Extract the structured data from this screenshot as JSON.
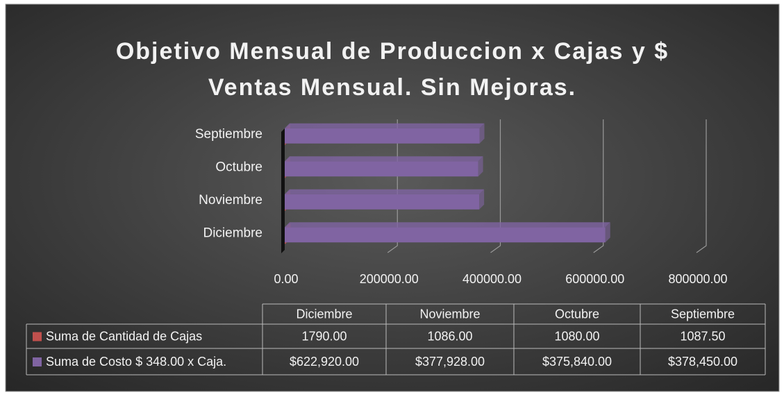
{
  "chart_data": {
    "type": "bar",
    "title": [
      "Objetivo Mensual de Produccion x Cajas y $",
      "Ventas Mensual. Sin Mejoras."
    ],
    "categories": [
      "Diciembre",
      "Noviembre",
      "Octubre",
      "Septiembre"
    ],
    "series": [
      {
        "name": "Suma de Cantidad de Cajas",
        "color": "#c0504d",
        "values": [
          1790,
          1086,
          1080,
          1087.5
        ],
        "value_labels": [
          "1790.00",
          "1086.00",
          "1080.00",
          "1087.50"
        ]
      },
      {
        "name": "Suma de Costo $ 348.00 x Caja.",
        "color": "#8064a2",
        "values": [
          622920,
          377928,
          375840,
          378450
        ],
        "value_labels": [
          "$622,920.00",
          "$377,928.00",
          "$375,840.00",
          "$378,450.00"
        ]
      }
    ],
    "xlim": [
      0,
      800000
    ],
    "xticks": [
      {
        "value": 0,
        "label": "0.00"
      },
      {
        "value": 200000,
        "label": "200000.00"
      },
      {
        "value": 400000,
        "label": "400000.00"
      },
      {
        "value": 600000,
        "label": "600000.00"
      },
      {
        "value": 800000,
        "label": "800000.00"
      }
    ],
    "grid": true
  }
}
